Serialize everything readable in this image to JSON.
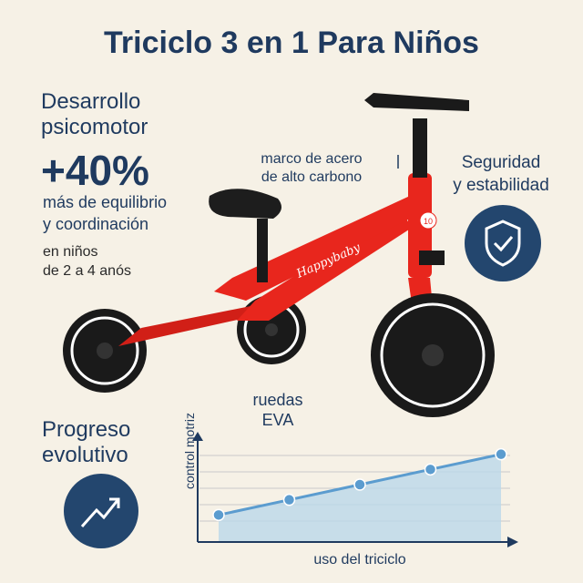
{
  "header": {
    "title": "Triciclo 3 en 1 Para Niños"
  },
  "development": {
    "heading_line1": "Desarrollo",
    "heading_line2": "psicomotor",
    "percent": "+40%",
    "gain_line1": "más de equilibrio",
    "gain_line2": "y coordinación",
    "age_line1": "en niños",
    "age_line2": "de 2 a 4 anós"
  },
  "callouts": {
    "frame_line1": "marco de acero",
    "frame_line2": "de alto carbono",
    "wheels_line1": "ruedas",
    "wheels_line2": "EVA"
  },
  "safety": {
    "line1": "Seguridad",
    "line2": "y estabilidad"
  },
  "progress": {
    "line1": "Progreso",
    "line2": "evolutivo"
  },
  "bike": {
    "brand": "Happybaby",
    "color": "#e8261d",
    "size_badge": "10"
  },
  "chart_data": {
    "type": "area",
    "x": [
      1,
      2,
      3,
      4,
      5
    ],
    "values": [
      1,
      2,
      3,
      4,
      5
    ],
    "xlabel": "uso del triciclo",
    "ylabel": "control motriz",
    "ylim": [
      0,
      6
    ],
    "grid": true,
    "legend": "none"
  },
  "colors": {
    "navy": "#1f3a5f",
    "background": "#f6f1e6",
    "chart_line": "#5b9ccf",
    "chart_fill": "#bcd8ea"
  }
}
